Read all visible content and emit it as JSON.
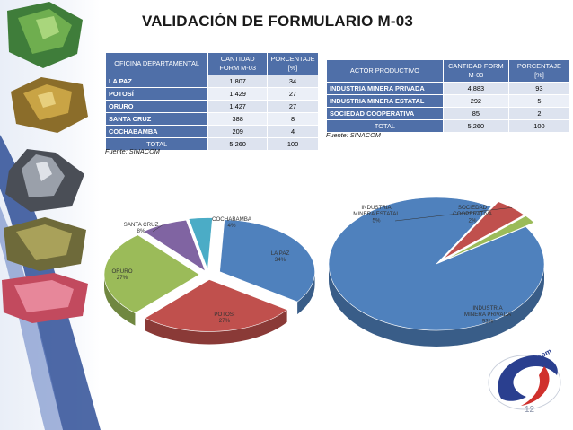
{
  "slide": {
    "title": "VALIDACIÓN DE FORMULARIO M-03",
    "page_number": "12"
  },
  "table_oficinas": {
    "headers": [
      "OFICINA DEPARTAMENTAL",
      "CANTIDAD FORM M-03",
      "PORCENTAJE [%]"
    ],
    "rows": [
      {
        "label": "LA PAZ",
        "cantidad": "1,807",
        "porcentaje": "34"
      },
      {
        "label": "POTOSÍ",
        "cantidad": "1,429",
        "porcentaje": "27"
      },
      {
        "label": "ORURO",
        "cantidad": "1,427",
        "porcentaje": "27"
      },
      {
        "label": "SANTA CRUZ",
        "cantidad": "388",
        "porcentaje": "8"
      },
      {
        "label": "COCHABAMBA",
        "cantidad": "209",
        "porcentaje": "4"
      }
    ],
    "total": {
      "label": "TOTAL",
      "cantidad": "5,260",
      "porcentaje": "100"
    },
    "source": "Fuente: SINACOM"
  },
  "table_actores": {
    "headers": [
      "ACTOR PRODUCTIVO",
      "CANTIDAD FORM M-03",
      "PORCENTAJE [%]"
    ],
    "rows": [
      {
        "label": "INDUSTRIA MINERA PRIVADA",
        "cantidad": "4,883",
        "porcentaje": "93"
      },
      {
        "label": "INDUSTRIA MINERA ESTATAL",
        "cantidad": "292",
        "porcentaje": "5"
      },
      {
        "label": "SOCIEDAD COOPERATIVA",
        "cantidad": "85",
        "porcentaje": "2"
      }
    ],
    "total": {
      "label": "TOTAL",
      "cantidad": "5,260",
      "porcentaje": "100"
    },
    "source": "Fuente: SINACOM"
  },
  "colors": {
    "header_blue": "#4f6fa8",
    "slice_blue": "#4f81bd",
    "slice_red": "#c0504d",
    "slice_green": "#9bbb59",
    "slice_purple": "#8064a2",
    "slice_cyan": "#4bacc6"
  },
  "chart_data": [
    {
      "type": "pie",
      "style": "3d-exploded",
      "slices": [
        {
          "label": "LA PAZ",
          "value": 34,
          "pct_label": "34%",
          "color": "#4f81bd"
        },
        {
          "label": "POTOSI",
          "value": 27,
          "pct_label": "27%",
          "color": "#c0504d"
        },
        {
          "label": "ORURO",
          "value": 27,
          "pct_label": "27%",
          "color": "#9bbb59"
        },
        {
          "label": "SANTA CRUZ",
          "value": 8,
          "pct_label": "8%",
          "color": "#8064a2"
        },
        {
          "label": "COCHABAMBA",
          "value": 4,
          "pct_label": "4%",
          "color": "#4bacc6"
        }
      ]
    },
    {
      "type": "pie",
      "style": "3d-exploded",
      "slices": [
        {
          "label": "INDUSTRIA MINERA PRIVADA",
          "value": 93,
          "pct_label": "93%",
          "color": "#4f81bd"
        },
        {
          "label": "INDUSTRIA MINERA ESTATAL",
          "value": 5,
          "pct_label": "5%",
          "color": "#c0504d"
        },
        {
          "label": "SOCIEDAD COOPERATIVA",
          "value": 2,
          "pct_label": "2%",
          "color": "#9bbb59"
        }
      ]
    }
  ]
}
